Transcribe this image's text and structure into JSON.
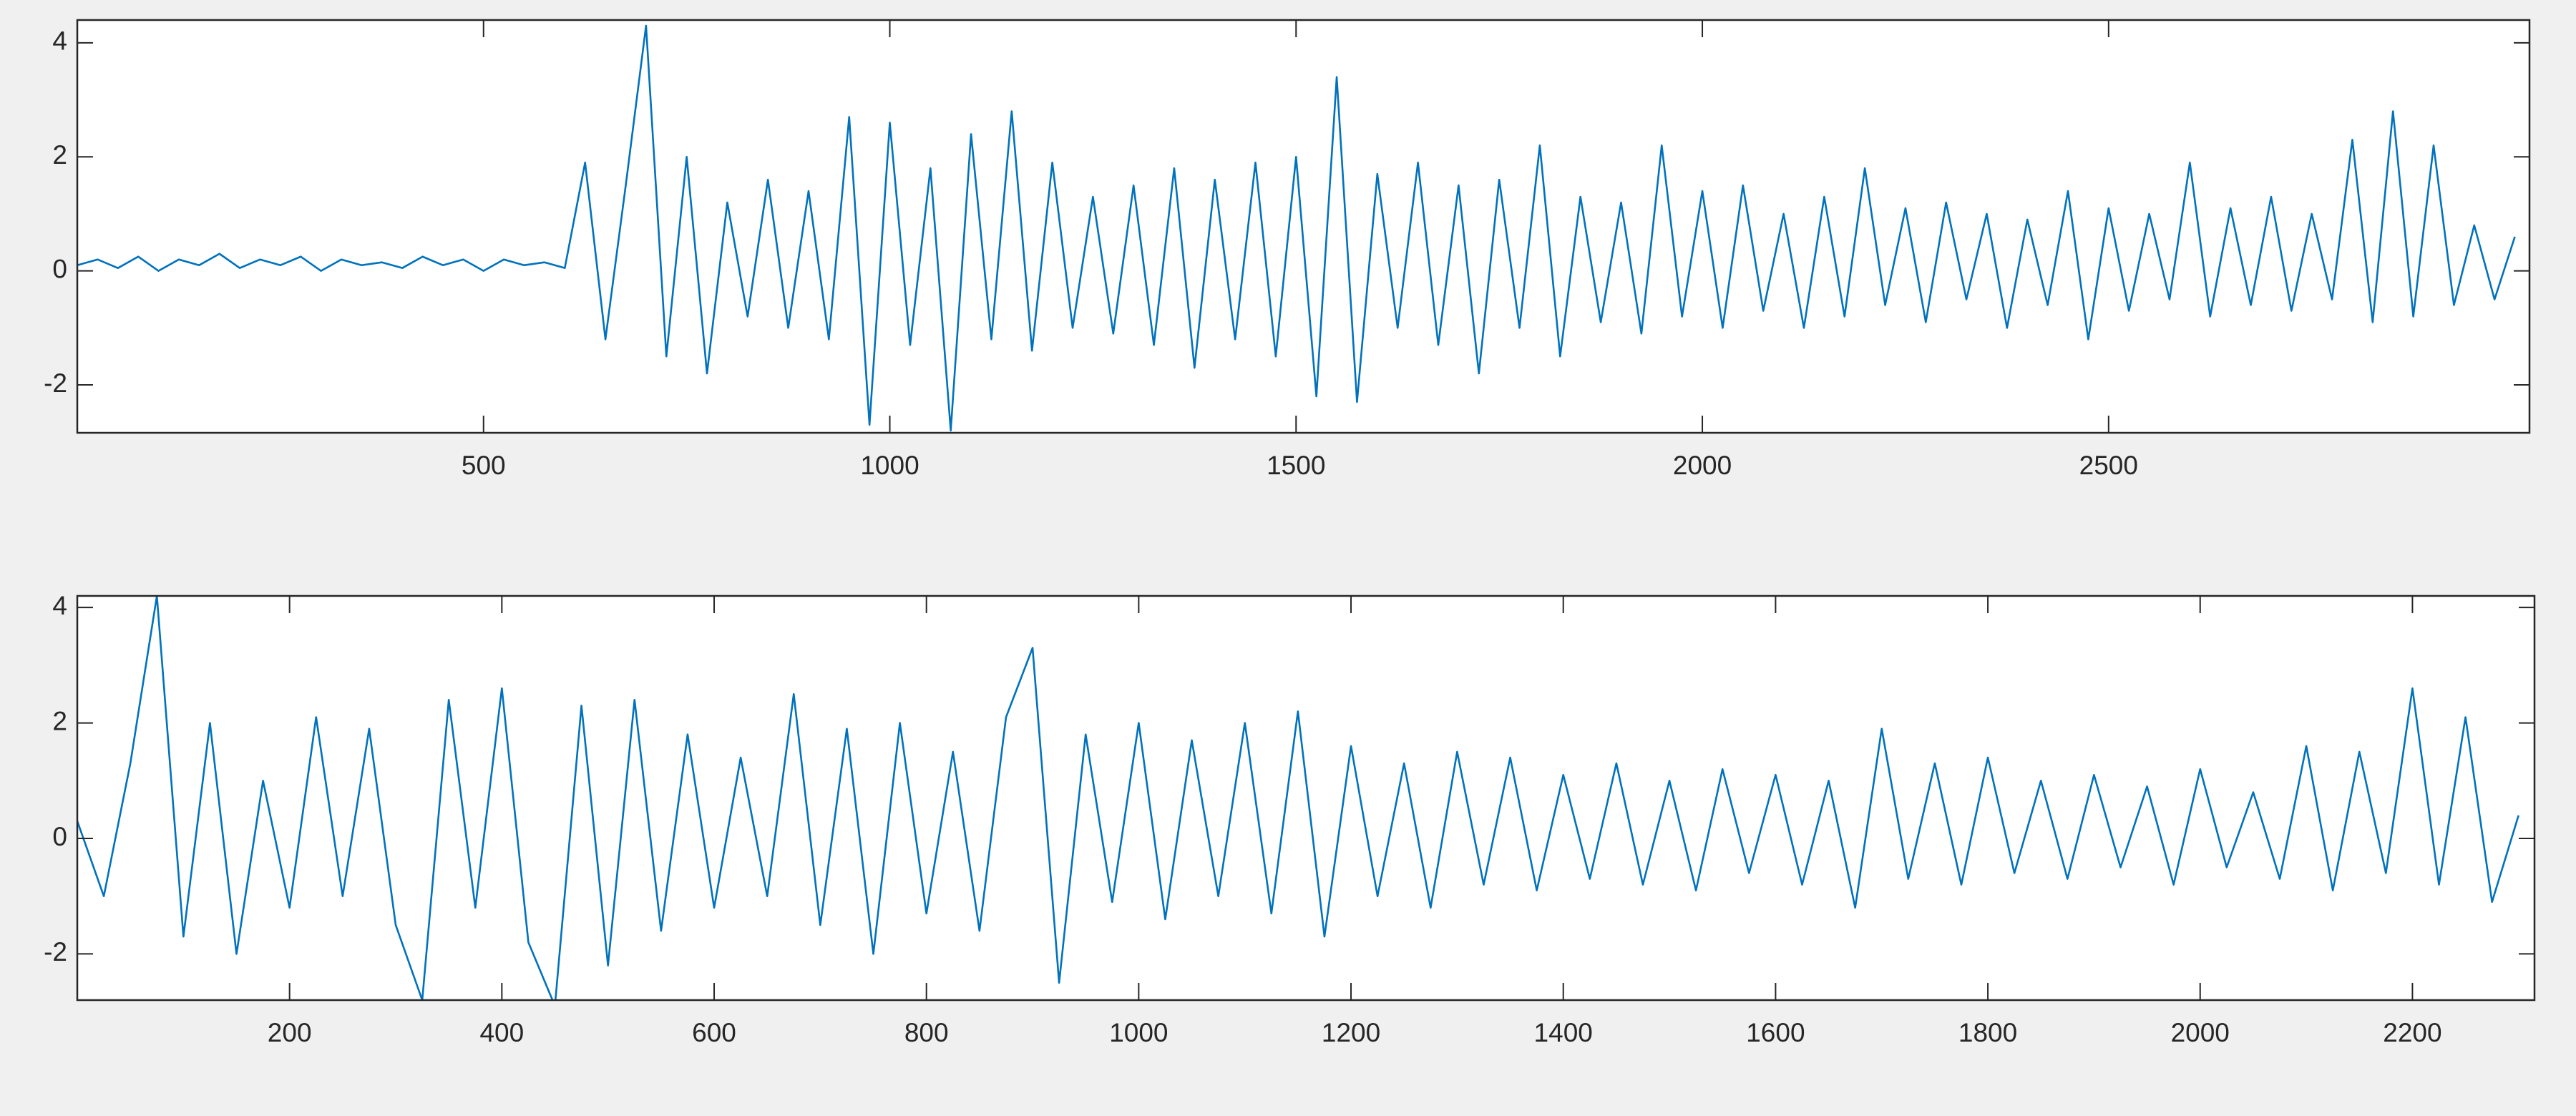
{
  "chart_data": [
    {
      "type": "line",
      "color": "#0072bd",
      "grid": false,
      "xlim": [
        0,
        3018
      ],
      "ylim": [
        -2.84,
        4.4
      ],
      "xticks": [
        500,
        1000,
        1500,
        2000,
        2500
      ],
      "yticks": [
        -2,
        0,
        2,
        4
      ],
      "x": [
        0,
        25,
        50,
        75,
        100,
        125,
        150,
        175,
        200,
        225,
        250,
        275,
        300,
        325,
        350,
        375,
        400,
        425,
        450,
        475,
        500,
        525,
        550,
        575,
        600,
        625,
        650,
        675,
        700,
        725,
        750,
        775,
        800,
        825,
        850,
        875,
        900,
        925,
        950,
        975,
        1000,
        1025,
        1050,
        1075,
        1100,
        1125,
        1150,
        1175,
        1200,
        1225,
        1250,
        1275,
        1300,
        1325,
        1350,
        1375,
        1400,
        1425,
        1450,
        1475,
        1500,
        1525,
        1550,
        1575,
        1600,
        1625,
        1650,
        1675,
        1700,
        1725,
        1750,
        1775,
        1800,
        1825,
        1850,
        1875,
        1900,
        1925,
        1950,
        1975,
        2000,
        2025,
        2050,
        2075,
        2100,
        2125,
        2150,
        2175,
        2200,
        2225,
        2250,
        2275,
        2300,
        2325,
        2350,
        2375,
        2400,
        2425,
        2450,
        2475,
        2500,
        2525,
        2550,
        2575,
        2600,
        2625,
        2650,
        2675,
        2700,
        2725,
        2750,
        2775,
        2800,
        2825,
        2850,
        2875,
        2900,
        2925,
        2950,
        2975,
        3000
      ],
      "values": [
        0.1,
        0.2,
        0.05,
        0.25,
        0.0,
        0.2,
        0.1,
        0.3,
        0.05,
        0.2,
        0.1,
        0.25,
        0.0,
        0.2,
        0.1,
        0.15,
        0.05,
        0.25,
        0.1,
        0.2,
        0.0,
        0.2,
        0.1,
        0.15,
        0.05,
        1.9,
        -1.2,
        1.5,
        4.3,
        -1.5,
        2.0,
        -1.8,
        1.2,
        -0.8,
        1.6,
        -1.0,
        1.4,
        -1.2,
        2.7,
        -2.7,
        2.6,
        -1.3,
        1.8,
        -2.8,
        2.4,
        -1.2,
        2.8,
        -1.4,
        1.9,
        -1.0,
        1.3,
        -1.1,
        1.5,
        -1.3,
        1.8,
        -1.7,
        1.6,
        -1.2,
        1.9,
        -1.5,
        2.0,
        -2.2,
        3.4,
        -2.3,
        1.7,
        -1.0,
        1.9,
        -1.3,
        1.5,
        -1.8,
        1.6,
        -1.0,
        2.2,
        -1.5,
        1.3,
        -0.9,
        1.2,
        -1.1,
        2.2,
        -0.8,
        1.4,
        -1.0,
        1.5,
        -0.7,
        1.0,
        -1.0,
        1.3,
        -0.8,
        1.8,
        -0.6,
        1.1,
        -0.9,
        1.2,
        -0.5,
        1.0,
        -1.0,
        0.9,
        -0.6,
        1.4,
        -1.2,
        1.1,
        -0.7,
        1.0,
        -0.5,
        1.9,
        -0.8,
        1.1,
        -0.6,
        1.3,
        -0.7,
        1.0,
        -0.5,
        2.3,
        -0.9,
        2.8,
        -0.8,
        2.2,
        -0.6,
        0.8,
        -0.5,
        0.6
      ]
    },
    {
      "type": "line",
      "color": "#0072bd",
      "grid": false,
      "xlim": [
        0,
        2315
      ],
      "ylim": [
        -2.8,
        4.2
      ],
      "xticks": [
        200,
        400,
        600,
        800,
        1000,
        1200,
        1400,
        1600,
        1800,
        2000,
        2200
      ],
      "yticks": [
        -2,
        0,
        2,
        4
      ],
      "x": [
        0,
        25,
        50,
        75,
        100,
        125,
        150,
        175,
        200,
        225,
        250,
        275,
        300,
        325,
        350,
        375,
        400,
        425,
        450,
        475,
        500,
        525,
        550,
        575,
        600,
        625,
        650,
        675,
        700,
        725,
        750,
        775,
        800,
        825,
        850,
        875,
        900,
        925,
        950,
        975,
        1000,
        1025,
        1050,
        1075,
        1100,
        1125,
        1150,
        1175,
        1200,
        1225,
        1250,
        1275,
        1300,
        1325,
        1350,
        1375,
        1400,
        1425,
        1450,
        1475,
        1500,
        1525,
        1550,
        1575,
        1600,
        1625,
        1650,
        1675,
        1700,
        1725,
        1750,
        1775,
        1800,
        1825,
        1850,
        1875,
        1900,
        1925,
        1950,
        1975,
        2000,
        2025,
        2050,
        2075,
        2100,
        2125,
        2150,
        2175,
        2200,
        2225,
        2250,
        2275,
        2300
      ],
      "values": [
        0.3,
        -1.0,
        1.3,
        4.2,
        -1.7,
        2.0,
        -2.0,
        1.0,
        -1.2,
        2.1,
        -1.0,
        1.9,
        -1.5,
        -2.8,
        2.4,
        -1.2,
        2.6,
        -1.8,
        -2.9,
        2.3,
        -2.2,
        2.4,
        -1.6,
        1.8,
        -1.2,
        1.4,
        -1.0,
        2.5,
        -1.5,
        1.9,
        -2.0,
        2.0,
        -1.3,
        1.5,
        -1.6,
        2.1,
        3.3,
        -2.5,
        1.8,
        -1.1,
        2.0,
        -1.4,
        1.7,
        -1.0,
        2.0,
        -1.3,
        2.2,
        -1.7,
        1.6,
        -1.0,
        1.3,
        -1.2,
        1.5,
        -0.8,
        1.4,
        -0.9,
        1.1,
        -0.7,
        1.3,
        -0.8,
        1.0,
        -0.9,
        1.2,
        -0.6,
        1.1,
        -0.8,
        1.0,
        -1.2,
        1.9,
        -0.7,
        1.3,
        -0.8,
        1.4,
        -0.6,
        1.0,
        -0.7,
        1.1,
        -0.5,
        0.9,
        -0.8,
        1.2,
        -0.5,
        0.8,
        -0.7,
        1.6,
        -0.9,
        1.5,
        -0.6,
        2.6,
        -0.8,
        2.1,
        -1.1,
        0.4
      ]
    }
  ]
}
